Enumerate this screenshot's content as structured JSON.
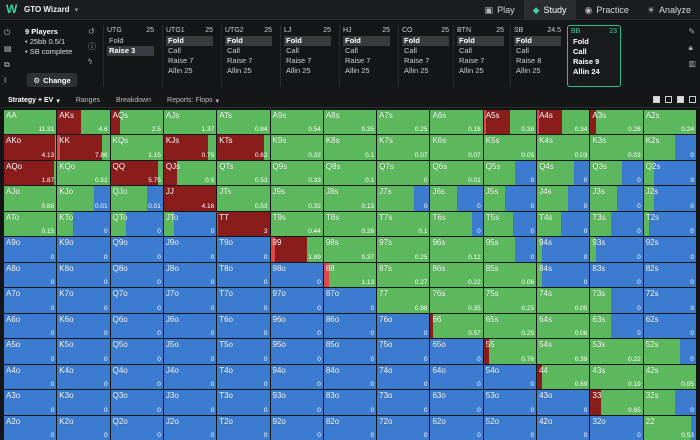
{
  "app": {
    "name": "GTO Wizard"
  },
  "nav": [
    {
      "label": "Play",
      "icon": "play-icon"
    },
    {
      "label": "Study",
      "icon": "study-icon"
    },
    {
      "label": "Practice",
      "icon": "practice-icon"
    },
    {
      "label": "Analyze",
      "icon": "analyze-icon"
    }
  ],
  "players": {
    "title": "9 Players",
    "stakes": "25bb 0.5/1",
    "sb": "SB complete",
    "change": "Change"
  },
  "seats": [
    {
      "pos": "UTG",
      "stack": "25",
      "actions": [
        "Fold",
        "Raise 3"
      ],
      "selected": 1
    },
    {
      "pos": "UTG1",
      "stack": "25",
      "actions": [
        "Fold",
        "Call",
        "Raise 7",
        "Allin 25"
      ],
      "selected": 0
    },
    {
      "pos": "UTG2",
      "stack": "25",
      "actions": [
        "Fold",
        "Call",
        "Raise 7",
        "Allin 25"
      ],
      "selected": 0
    },
    {
      "pos": "LJ",
      "stack": "25",
      "actions": [
        "Fold",
        "Call",
        "Raise 7",
        "Allin 25"
      ],
      "selected": 0
    },
    {
      "pos": "HJ",
      "stack": "25",
      "actions": [
        "Fold",
        "Call",
        "Raise 7",
        "Allin 25"
      ],
      "selected": 0
    },
    {
      "pos": "CO",
      "stack": "25",
      "actions": [
        "Fold",
        "Call",
        "Raise 7",
        "Allin 25"
      ],
      "selected": 0
    },
    {
      "pos": "BTN",
      "stack": "25",
      "actions": [
        "Fold",
        "Call",
        "Raise 7",
        "Allin 25"
      ],
      "selected": 0
    },
    {
      "pos": "SB",
      "stack": "24.5",
      "actions": [
        "Fold",
        "Call",
        "Raise 8",
        "Allin 25"
      ],
      "selected": 0
    },
    {
      "pos": "BB",
      "stack": "23",
      "actions": [
        "Fold",
        "Call",
        "Raise 9",
        "Allin 24"
      ],
      "selected": -1,
      "active": true
    }
  ],
  "tabs": [
    {
      "label": "Strategy + EV",
      "caret": true
    },
    {
      "label": "Ranges",
      "caret": false
    },
    {
      "label": "Breakdown",
      "caret": false
    },
    {
      "label": "Reports: Flops",
      "caret": true
    }
  ],
  "colors": {
    "fold": "#3b7bd0",
    "call": "#5cb85c",
    "raise": "#8b1c1c",
    "allin": "#e04848",
    "accent": "#3bd3a4"
  },
  "grid": [
    [
      "AA|11.31|a0,r0,c100",
      "AKs|4.6|a0,r45,c55",
      "AQs|2.5|a0,r18,c82",
      "AJs|1.37|c100",
      "ATs|0.84|c100",
      "A9s|0.54|c100",
      "A8s|0.35|c100",
      "A7s|0.25|c100",
      "A6s|0.18|c100",
      "A5s|0.38|a5,r45,c50",
      "A4s|0.34|a3,r45,c52",
      "A3s|0.28|a0,r10,c90",
      "A2s|0.24|c100"
    ],
    [
      "AKo|4.13|a0,r98,c2",
      "KK|7.86|a5,r80,c15",
      "KQs|1.15|c100",
      "KJs|0.79|a0,r85,c15",
      "KTs|0.62|a0,r90,c10",
      "K9s|0.32|c100",
      "K8s|0.1|c100",
      "K7s|0.07|c100",
      "K6s|0.07|c100",
      "K5s|0.05|c100",
      "K4s|0.03|c100",
      "K3s|0.03|c100",
      "K2s|0|f40,c60"
    ],
    [
      "AQo|1.87|a0,r95,c5",
      "KQo|0.52|c100",
      "QQ|5.75|a0,r90,c10",
      "QJs|0.5|a0,r25,c75",
      "QTs|0.53|c100",
      "Q9s|0.33|c100",
      "Q8s|0.1|c100",
      "Q7s|0|c100",
      "Q6s|0.01|c100",
      "Q5s|0|f40,c60",
      "Q4s|0|f30,c70",
      "Q3s|0|f40,c60",
      "Q2s|0|f80,c20"
    ],
    [
      "AJo|0.66|c100",
      "KJo|0.01|f30,c70",
      "QJo|0.01|f30,c70",
      "JJ|4.16|a0,r100,c0",
      "JTs|0.53|c100",
      "J9s|0.32|c100",
      "J8s|0.13|c100",
      "J7s|0|f30,c70",
      "J6s|0|f50,c50",
      "J5s|0|f60,c40",
      "J4s|0|f40,c60",
      "J3s|0|f50,c50",
      "J2s|0|f80,c20"
    ],
    [
      "ATo|0.15|c100",
      "KTo|0|f70,c30",
      "QTo|0|f70,c30",
      "JTo|0|f80,c20",
      "TT|3|a2,r98,c0",
      "T9s|0.44|c100",
      "T8s|0.26|c100",
      "T7s|0.1|c100",
      "T6s|0|f20,c80",
      "T5s|0|f45,c55",
      "T4s|0|f55,c45",
      "T3s|0|f60,c40",
      "T2s|0|f90,c10"
    ],
    [
      "A9o|0|f100",
      "K9o|0|f100",
      "Q9o|0|f100",
      "J9o|0|f100",
      "T9o|0|f100",
      "99|1.89|a8,r62,c30",
      "98s|0.37|c100",
      "97s|0.25|c100",
      "96s|0.12|c100",
      "95s|0|f40,c60",
      "94s|0|f90,c10",
      "93s|0|f90,c10",
      "92s|0|f100"
    ],
    [
      "A8o|0|f100",
      "K8o|0|f100",
      "Q8o|0|f100",
      "J8o|0|f100",
      "T8o|0|f100",
      "98o|0|f100",
      "88|1.13|a10,r0,c90",
      "87s|0.27|c100",
      "86s|0.22|c100",
      "85s|0.06|c100",
      "84s|0|f90,c10",
      "83s|0|f100",
      "82s|0|f100"
    ],
    [
      "A7o|0|f100",
      "K7o|0|f100",
      "Q7o|0|f100",
      "J7o|0|f100",
      "T7o|0|f100",
      "97o|0|f100",
      "87o|0|f100",
      "77|0.88|c100",
      "76s|0.35|c100",
      "75s|0.25|c100",
      "74s|0.05|c100",
      "73s|0|f60,c40",
      "72s|0|f100"
    ],
    [
      "A6o|0|f100",
      "K6o|0|f100",
      "Q6o|0|f100",
      "J6o|0|f100",
      "T6o|0|f100",
      "96o|0|f100",
      "86o|0|f100",
      "76o|0|f100",
      "66|0.57|a0,r5,c95",
      "65s|0.25|c100",
      "64s|0.06|c100",
      "63s|0|f60,c40",
      "62s|0|f100"
    ],
    [
      "A5o|0|f100",
      "K5o|0|f100",
      "Q5o|0|f100",
      "J5o|0|f100",
      "T5o|0|f100",
      "95o|0|f100",
      "85o|0|f100",
      "75o|0|f100",
      "65o|0|f100",
      "55|0.76|a0,r10,c90",
      "54s|0.39|c100",
      "53s|0.22|c100",
      "52s|0|f30,c70"
    ],
    [
      "A4o|0|f100",
      "K4o|0|f100",
      "Q4o|0|f100",
      "J4o|0|f100",
      "T4o|0|f100",
      "94o|0|f100",
      "84o|0|f100",
      "74o|0|f100",
      "64o|0|f100",
      "54o|0|f100",
      "44|0.69|a0,r10,c90",
      "43s|0.19|c100",
      "42s|0.05|c100"
    ],
    [
      "A3o|0|f100",
      "K3o|0|f100",
      "Q3o|0|f100",
      "J3o|0|f100",
      "T3o|0|f100",
      "93o|0|f100",
      "83o|0|f100",
      "73o|0|f100",
      "63o|0|f100",
      "53o|0|f100",
      "43o|0|f100",
      "33|0.65|a0,r20,c80",
      "32s|0|f40,c60"
    ],
    [
      "A2o|0|f100",
      "K2o|0|f100",
      "Q2o|0|f100",
      "J2o|0|f100",
      "T2o|0|f100",
      "92o|0|f100",
      "82o|0|f100",
      "72o|0|f100",
      "62o|0|f100",
      "52o|0|f100",
      "42o|0|f100",
      "32o|0|f100",
      "22|0.53|a0,r0,c90"
    ]
  ]
}
